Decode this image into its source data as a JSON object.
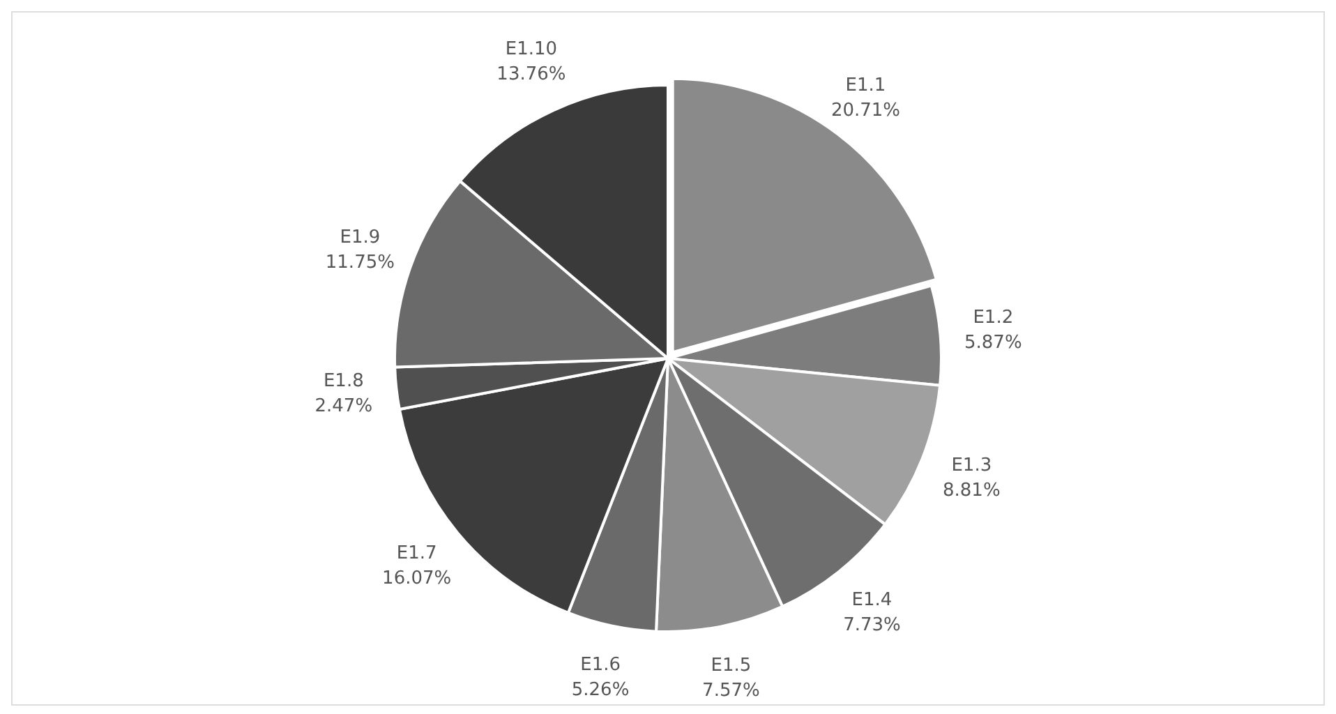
{
  "chart_data": {
    "type": "pie",
    "categories": [
      "E1.1",
      "E1.2",
      "E1.3",
      "E1.4",
      "E1.5",
      "E1.6",
      "E1.7",
      "E1.8",
      "E1.9",
      "E1.10"
    ],
    "values": [
      20.71,
      5.87,
      8.81,
      7.73,
      7.57,
      5.26,
      16.07,
      2.47,
      11.75,
      13.76
    ],
    "colors": [
      "#8a8a8a",
      "#7d7d7d",
      "#a0a0a0",
      "#6e6e6e",
      "#8c8c8c",
      "#6a6a6a",
      "#3c3c3c",
      "#505050",
      "#6a6a6a",
      "#3a3a3a"
    ],
    "value_labels": [
      "20.71%",
      "5.87%",
      "8.81%",
      "7.73%",
      "7.57%",
      "5.26%",
      "16.07%",
      "2.47%",
      "11.75%",
      "13.76%"
    ],
    "legend": false
  }
}
